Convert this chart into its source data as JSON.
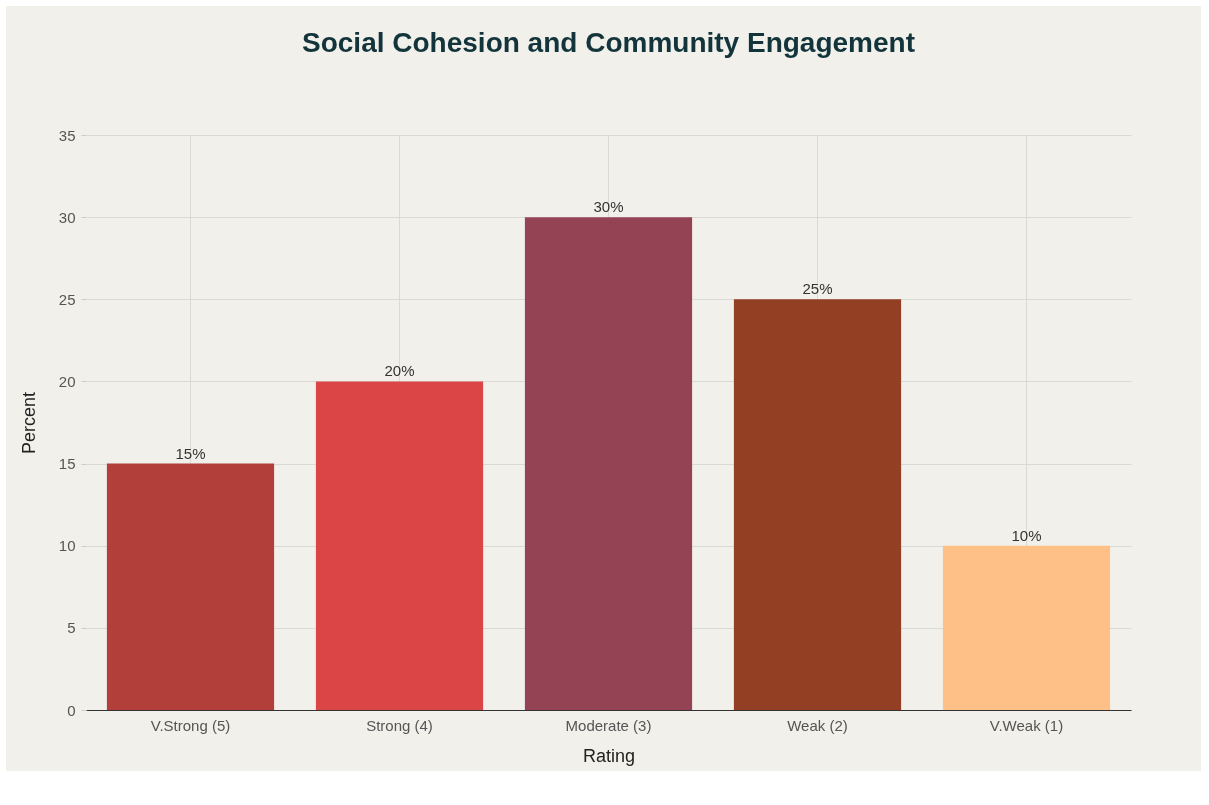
{
  "chart_data": {
    "type": "bar",
    "title": "Social Cohesion and Community Engagement",
    "xlabel": "Rating",
    "ylabel": "Percent",
    "categories": [
      "V.Strong (5)",
      "Strong (4)",
      "Moderate (3)",
      "Weak (2)",
      "V.Weak (1)"
    ],
    "values": [
      15,
      20,
      30,
      25,
      10
    ],
    "colors": [
      "#b33f3a",
      "#dc4545",
      "#944354",
      "#923f23",
      "#fec087"
    ],
    "value_labels": [
      "15%",
      "20%",
      "30%",
      "25%",
      "10%"
    ],
    "ylim": [
      0,
      35
    ],
    "yticks": [
      0,
      5,
      10,
      15,
      20,
      25,
      30,
      35
    ],
    "grid": true
  }
}
